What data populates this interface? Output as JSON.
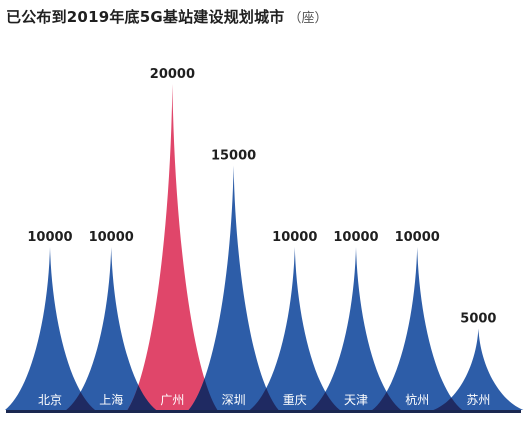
{
  "header": {
    "title": "已公布到2019年底5G基站建设规划城市",
    "unit": "（座）"
  },
  "colors": {
    "default_spike": "#2d5da8",
    "highlight_spike": "#e0466a",
    "overlap": "#1f2a62",
    "baseline": "#1a2850",
    "value_label": "#1f1f1f",
    "category_label": "#ffffff"
  },
  "chart_data": {
    "type": "area",
    "categories": [
      "北京",
      "上海",
      "广州",
      "深圳",
      "重庆",
      "天津",
      "杭州",
      "苏州"
    ],
    "values": [
      10000,
      10000,
      20000,
      15000,
      10000,
      10000,
      10000,
      5000
    ],
    "value_labels": [
      "10000",
      "10000",
      "20000",
      "15000",
      "10000",
      "10000",
      "10000",
      "5000"
    ],
    "highlight": "广州",
    "ylim": [
      0,
      20000
    ],
    "grid": false,
    "legend": "none"
  }
}
